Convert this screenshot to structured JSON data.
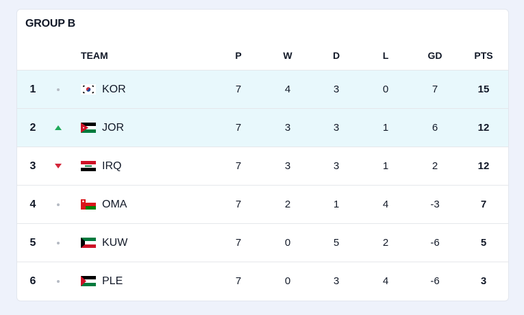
{
  "group": {
    "title": "GROUP B"
  },
  "headers": {
    "team": "TEAM",
    "p": "P",
    "w": "W",
    "d": "D",
    "l": "L",
    "gd": "GD",
    "pts": "PTS"
  },
  "colors": {
    "highlight_row": "#e8f8fc",
    "trend_up": "#1faa5a",
    "trend_down": "#d3263a",
    "trend_same": "#b5bac3"
  },
  "rows": [
    {
      "rank": "1",
      "trend": "same",
      "flag": "south-korea-flag-icon",
      "team": "KOR",
      "p": "7",
      "w": "4",
      "d": "3",
      "l": "0",
      "gd": "7",
      "pts": "15",
      "highlighted": true
    },
    {
      "rank": "2",
      "trend": "up",
      "flag": "jordan-flag-icon",
      "team": "JOR",
      "p": "7",
      "w": "3",
      "d": "3",
      "l": "1",
      "gd": "6",
      "pts": "12",
      "highlighted": true
    },
    {
      "rank": "3",
      "trend": "down",
      "flag": "iraq-flag-icon",
      "team": "IRQ",
      "p": "7",
      "w": "3",
      "d": "3",
      "l": "1",
      "gd": "2",
      "pts": "12",
      "highlighted": false
    },
    {
      "rank": "4",
      "trend": "same",
      "flag": "oman-flag-icon",
      "team": "OMA",
      "p": "7",
      "w": "2",
      "d": "1",
      "l": "4",
      "gd": "-3",
      "pts": "7",
      "highlighted": false
    },
    {
      "rank": "5",
      "trend": "same",
      "flag": "kuwait-flag-icon",
      "team": "KUW",
      "p": "7",
      "w": "0",
      "d": "5",
      "l": "2",
      "gd": "-6",
      "pts": "5",
      "highlighted": false
    },
    {
      "rank": "6",
      "trend": "same",
      "flag": "palestine-flag-icon",
      "team": "PLE",
      "p": "7",
      "w": "0",
      "d": "3",
      "l": "4",
      "gd": "-6",
      "pts": "3",
      "highlighted": false
    }
  ]
}
